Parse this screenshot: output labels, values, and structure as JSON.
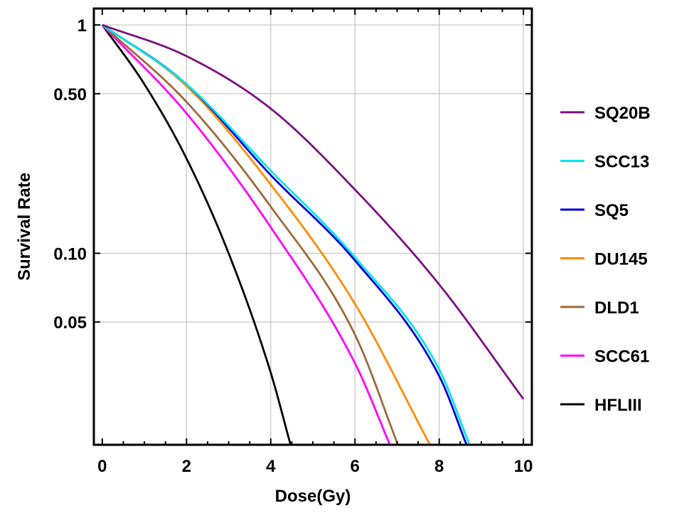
{
  "chart_data": {
    "type": "line",
    "xlabel": "Dose(Gy)",
    "ylabel": "Survival Rate",
    "xlim": [
      -0.2,
      10.2
    ],
    "ylim": [
      0.0145,
      1.18
    ],
    "yscale": "log",
    "grid": true,
    "legend_position": "right",
    "x_ticks": [
      {
        "value": 0,
        "label": "0"
      },
      {
        "value": 2,
        "label": "2"
      },
      {
        "value": 4,
        "label": "4"
      },
      {
        "value": 6,
        "label": "6"
      },
      {
        "value": 8,
        "label": "8"
      },
      {
        "value": 10,
        "label": "10"
      }
    ],
    "y_ticks": [
      {
        "value": 1,
        "label": "1"
      },
      {
        "value": 0.5,
        "label": "0.50"
      },
      {
        "value": 0.1,
        "label": "0.10"
      },
      {
        "value": 0.05,
        "label": "0.05"
      }
    ],
    "series": [
      {
        "name": "SQ20B",
        "color": "#7b0f80",
        "x": [
          0,
          2,
          4,
          6,
          8,
          10
        ],
        "y": [
          1,
          0.73,
          0.43,
          0.19,
          0.073,
          0.023
        ]
      },
      {
        "name": "SCC13",
        "color": "#00e5ee",
        "x": [
          0,
          2,
          4,
          6,
          8,
          8.72
        ],
        "y": [
          1,
          0.55,
          0.23,
          0.096,
          0.031,
          0.0145
        ]
      },
      {
        "name": "SQ5",
        "color": "#0000d8",
        "x": [
          0,
          2,
          4,
          6,
          8,
          8.65
        ],
        "y": [
          1,
          0.55,
          0.22,
          0.093,
          0.029,
          0.0145
        ]
      },
      {
        "name": "DU145",
        "color": "#ff8c00",
        "x": [
          0,
          2,
          4,
          6,
          7.78
        ],
        "y": [
          1,
          0.54,
          0.2,
          0.06,
          0.0145
        ]
      },
      {
        "name": "DLD1",
        "color": "#9c6a3a",
        "x": [
          0,
          2,
          4,
          6,
          7.02
        ],
        "y": [
          1,
          0.46,
          0.16,
          0.044,
          0.0145
        ]
      },
      {
        "name": "SCC61",
        "color": "#ff00ff",
        "x": [
          0,
          2,
          4,
          6,
          6.83
        ],
        "y": [
          1,
          0.41,
          0.13,
          0.033,
          0.0145
        ]
      },
      {
        "name": "HFLIII",
        "color": "#000000",
        "x": [
          0,
          1,
          2,
          3,
          4,
          4.47
        ],
        "y": [
          1,
          0.55,
          0.26,
          0.1,
          0.03,
          0.0145
        ]
      }
    ]
  }
}
